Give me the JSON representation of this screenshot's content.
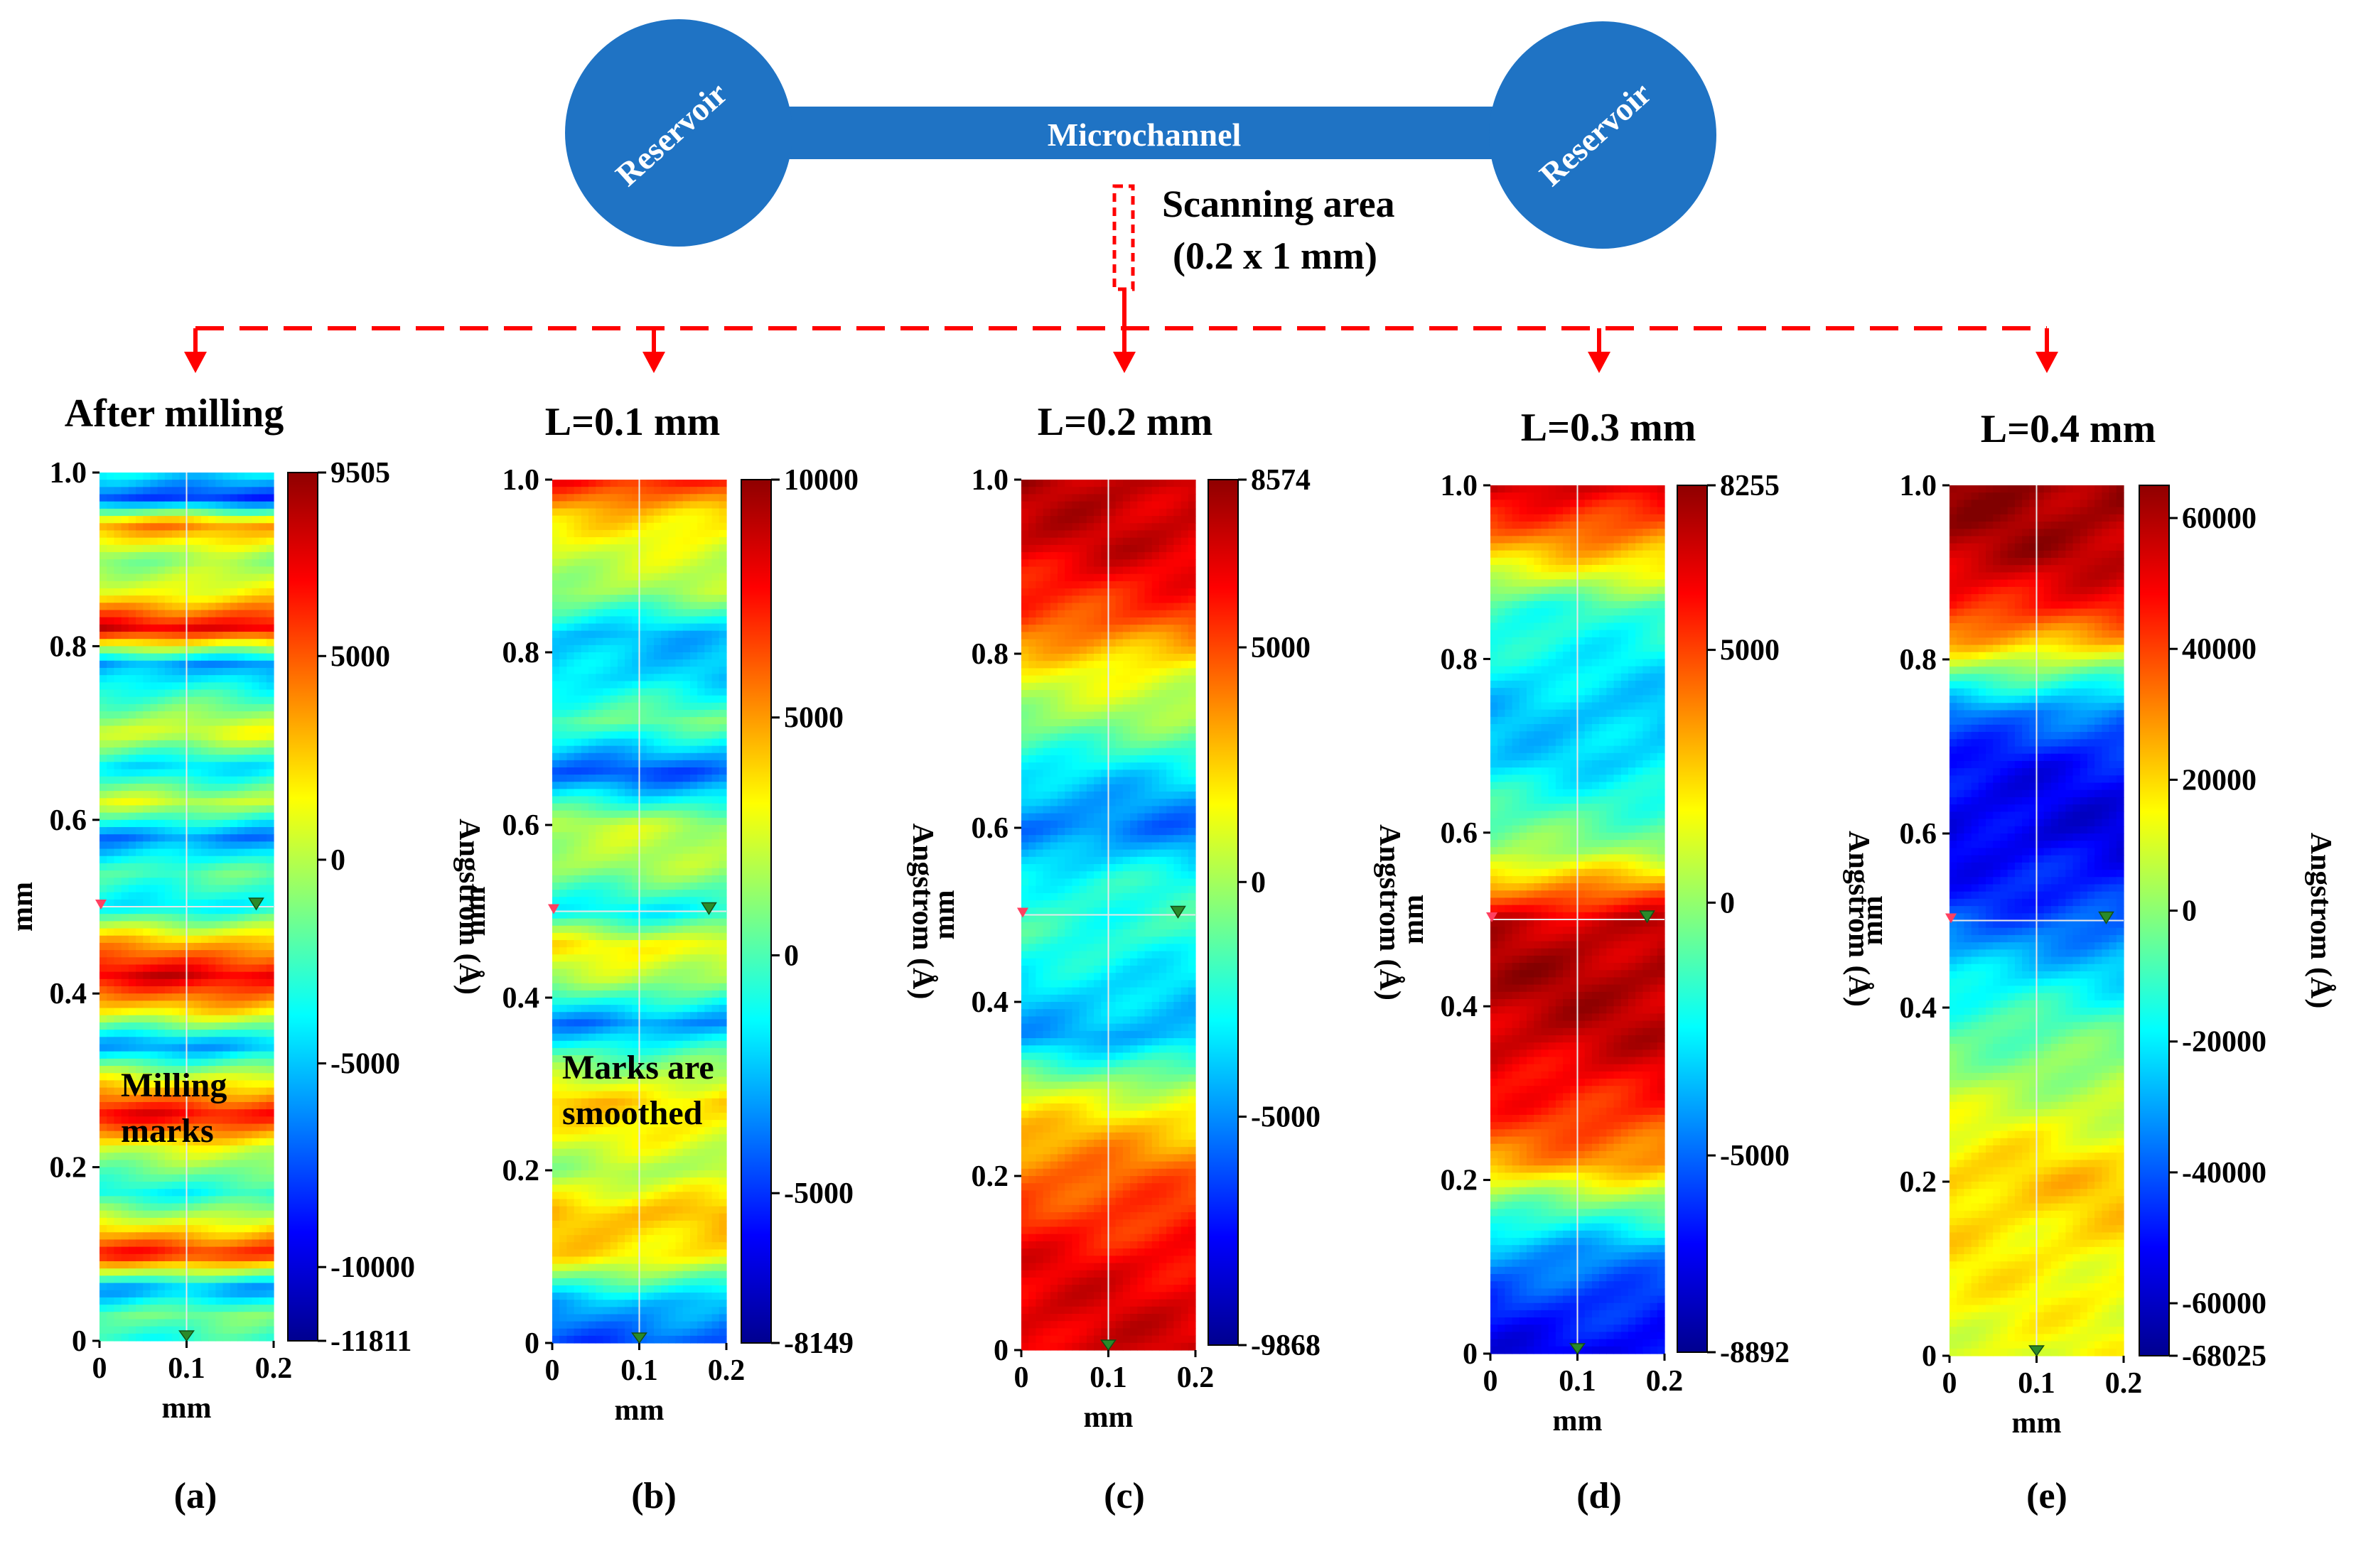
{
  "schematic": {
    "reservoir_left_label": "Reservoir",
    "reservoir_right_label": "Reservoir",
    "channel_label": "Microchannel",
    "scan_label_line1": "Scanning area",
    "scan_label_line2": "(0.2  x 1 mm)",
    "channel_color": "#1f73c4",
    "arrow_color": "#ff0000"
  },
  "chart_data": [
    {
      "type": "heatmap",
      "panel": "(a)",
      "title": "After milling",
      "xlabel": "mm",
      "ylabel": "mm",
      "colorbar_label": "Angstrom (Å)",
      "x_ticks": [
        "0",
        "0.1",
        "0.2"
      ],
      "y_ticks": [
        "0",
        "0.2",
        "0.4",
        "0.6",
        "0.8",
        "1.0"
      ],
      "xlim": [
        0,
        0.2
      ],
      "ylim": [
        0,
        1.0
      ],
      "zlim": [
        -11811,
        9505
      ],
      "colorbar_ticks": [
        {
          "value": 9505,
          "label": "9505"
        },
        {
          "value": 5000,
          "label": "5000"
        },
        {
          "value": 0,
          "label": "0"
        },
        {
          "value": -5000,
          "label": "-5000"
        },
        {
          "value": -10000,
          "label": "-10000"
        },
        {
          "value": -11811,
          "label": "-11811"
        }
      ],
      "annotation": [
        "Milling",
        "marks"
      ],
      "height_profile": [
        {
          "y": 0.0,
          "z": -3000
        },
        {
          "y": 0.03,
          "z": -1500
        },
        {
          "y": 0.06,
          "z": -6000
        },
        {
          "y": 0.1,
          "z": 6500
        },
        {
          "y": 0.13,
          "z": 2000
        },
        {
          "y": 0.17,
          "z": -3500
        },
        {
          "y": 0.22,
          "z": 500
        },
        {
          "y": 0.26,
          "z": 7000
        },
        {
          "y": 0.3,
          "z": 1500
        },
        {
          "y": 0.34,
          "z": -6000
        },
        {
          "y": 0.38,
          "z": 2000
        },
        {
          "y": 0.42,
          "z": 7500
        },
        {
          "y": 0.46,
          "z": 3000
        },
        {
          "y": 0.5,
          "z": -4000
        },
        {
          "y": 0.54,
          "z": -2000
        },
        {
          "y": 0.58,
          "z": -6500
        },
        {
          "y": 0.62,
          "z": 500
        },
        {
          "y": 0.66,
          "z": -4500
        },
        {
          "y": 0.7,
          "z": 1000
        },
        {
          "y": 0.74,
          "z": -2500
        },
        {
          "y": 0.78,
          "z": -6000
        },
        {
          "y": 0.82,
          "z": 7500
        },
        {
          "y": 0.86,
          "z": 1500
        },
        {
          "y": 0.9,
          "z": -1000
        },
        {
          "y": 0.94,
          "z": 4000
        },
        {
          "y": 0.97,
          "z": -8000
        },
        {
          "y": 1.0,
          "z": -4000
        }
      ]
    },
    {
      "type": "heatmap",
      "panel": "(b)",
      "title": "L=0.1 mm",
      "xlabel": "mm",
      "ylabel": "mm",
      "colorbar_label": "Angstrom (Å)",
      "x_ticks": [
        "0",
        "0.1",
        "0.2"
      ],
      "y_ticks": [
        "0",
        "0.2",
        "0.4",
        "0.6",
        "0.8",
        "1.0"
      ],
      "xlim": [
        0,
        0.2
      ],
      "ylim": [
        0,
        1.0
      ],
      "zlim": [
        -8149,
        10000
      ],
      "colorbar_ticks": [
        {
          "value": 10000,
          "label": "10000"
        },
        {
          "value": 5000,
          "label": "5000"
        },
        {
          "value": 0,
          "label": "0"
        },
        {
          "value": -5000,
          "label": "-5000"
        },
        {
          "value": -8149,
          "label": "-8149"
        }
      ],
      "annotation": [
        "Marks are",
        "smoothed"
      ],
      "height_profile": [
        {
          "y": 0.0,
          "z": -4500
        },
        {
          "y": 0.05,
          "z": -2500
        },
        {
          "y": 0.1,
          "z": 3500
        },
        {
          "y": 0.15,
          "z": 4500
        },
        {
          "y": 0.2,
          "z": 1500
        },
        {
          "y": 0.24,
          "z": 3000
        },
        {
          "y": 0.28,
          "z": 4000
        },
        {
          "y": 0.33,
          "z": 500
        },
        {
          "y": 0.37,
          "z": -3500
        },
        {
          "y": 0.42,
          "z": 1500
        },
        {
          "y": 0.46,
          "z": 3500
        },
        {
          "y": 0.5,
          "z": -1500
        },
        {
          "y": 0.55,
          "z": 1500
        },
        {
          "y": 0.6,
          "z": 2000
        },
        {
          "y": 0.66,
          "z": -4500
        },
        {
          "y": 0.72,
          "z": 500
        },
        {
          "y": 0.77,
          "z": -2000
        },
        {
          "y": 0.82,
          "z": -2500
        },
        {
          "y": 0.87,
          "z": 1500
        },
        {
          "y": 0.92,
          "z": 2500
        },
        {
          "y": 0.96,
          "z": 4000
        },
        {
          "y": 1.0,
          "z": 7500
        }
      ]
    },
    {
      "type": "heatmap",
      "panel": "(c)",
      "title": "L=0.2 mm",
      "xlabel": "mm",
      "ylabel": "mm",
      "colorbar_label": "Angstrom (Å)",
      "x_ticks": [
        "0",
        "0.1",
        "0.2"
      ],
      "y_ticks": [
        "0",
        "0.2",
        "0.4",
        "0.6",
        "0.8",
        "1.0"
      ],
      "xlim": [
        0,
        0.2
      ],
      "ylim": [
        0,
        1.0
      ],
      "zlim": [
        -9868,
        8574
      ],
      "colorbar_ticks": [
        {
          "value": 8574,
          "label": "8574"
        },
        {
          "value": 5000,
          "label": "5000"
        },
        {
          "value": 0,
          "label": "0"
        },
        {
          "value": -5000,
          "label": "-5000"
        },
        {
          "value": -9868,
          "label": "-9868"
        }
      ],
      "annotation": [],
      "height_profile": [
        {
          "y": 0.0,
          "z": 7000
        },
        {
          "y": 0.1,
          "z": 6500
        },
        {
          "y": 0.2,
          "z": 4500
        },
        {
          "y": 0.26,
          "z": 2500
        },
        {
          "y": 0.3,
          "z": 500
        },
        {
          "y": 0.36,
          "z": -4500
        },
        {
          "y": 0.42,
          "z": -3500
        },
        {
          "y": 0.48,
          "z": -2000
        },
        {
          "y": 0.54,
          "z": -2500
        },
        {
          "y": 0.6,
          "z": -5500
        },
        {
          "y": 0.66,
          "z": -3500
        },
        {
          "y": 0.72,
          "z": -500
        },
        {
          "y": 0.78,
          "z": 1500
        },
        {
          "y": 0.84,
          "z": 5000
        },
        {
          "y": 0.92,
          "z": 7000
        },
        {
          "y": 1.0,
          "z": 7500
        }
      ]
    },
    {
      "type": "heatmap",
      "panel": "(d)",
      "title": "L=0.3 mm",
      "xlabel": "mm",
      "ylabel": "mm",
      "colorbar_label": "Angstrom (Å)",
      "x_ticks": [
        "0",
        "0.1",
        "0.2"
      ],
      "y_ticks": [
        "0",
        "0.2",
        "0.4",
        "0.6",
        "0.8",
        "1.0"
      ],
      "xlim": [
        0,
        0.2
      ],
      "ylim": [
        0,
        1.0
      ],
      "zlim": [
        -8892,
        8255
      ],
      "colorbar_ticks": [
        {
          "value": 8255,
          "label": "8255"
        },
        {
          "value": 5000,
          "label": "5000"
        },
        {
          "value": 0,
          "label": "0"
        },
        {
          "value": -5000,
          "label": "-5000"
        },
        {
          "value": -8892,
          "label": "-8892"
        }
      ],
      "annotation": [],
      "height_profile": [
        {
          "y": 0.0,
          "z": -7000
        },
        {
          "y": 0.06,
          "z": -6000
        },
        {
          "y": 0.12,
          "z": -4000
        },
        {
          "y": 0.18,
          "z": 0
        },
        {
          "y": 0.22,
          "z": 3500
        },
        {
          "y": 0.28,
          "z": 5500
        },
        {
          "y": 0.36,
          "z": 7000
        },
        {
          "y": 0.44,
          "z": 7500
        },
        {
          "y": 0.5,
          "z": 7000
        },
        {
          "y": 0.54,
          "z": 3500
        },
        {
          "y": 0.58,
          "z": 0
        },
        {
          "y": 0.63,
          "z": -1500
        },
        {
          "y": 0.68,
          "z": -3000
        },
        {
          "y": 0.74,
          "z": -3500
        },
        {
          "y": 0.8,
          "z": -2500
        },
        {
          "y": 0.86,
          "z": -1500
        },
        {
          "y": 0.9,
          "z": 1500
        },
        {
          "y": 0.95,
          "z": 4500
        },
        {
          "y": 1.0,
          "z": 7000
        }
      ]
    },
    {
      "type": "heatmap",
      "panel": "(e)",
      "title": "L=0.4 mm",
      "xlabel": "mm",
      "ylabel": "mm",
      "colorbar_label": "Angstrom (Å)",
      "x_ticks": [
        "0",
        "0.1",
        "0.2"
      ],
      "y_ticks": [
        "0",
        "0.2",
        "0.4",
        "0.6",
        "0.8",
        "1.0"
      ],
      "xlim": [
        0,
        0.2
      ],
      "ylim": [
        0,
        1.0
      ],
      "zlim": [
        -68025,
        65000
      ],
      "colorbar_ticks": [
        {
          "value": 60000,
          "label": "60000"
        },
        {
          "value": 40000,
          "label": "40000"
        },
        {
          "value": 20000,
          "label": "20000"
        },
        {
          "value": 0,
          "label": "0"
        },
        {
          "value": -20000,
          "label": "-20000"
        },
        {
          "value": -40000,
          "label": "-40000"
        },
        {
          "value": -60000,
          "label": "-60000"
        },
        {
          "value": -68025,
          "label": "-68025"
        }
      ],
      "annotation": [],
      "height_profile": [
        {
          "y": 0.0,
          "z": 12000
        },
        {
          "y": 0.1,
          "z": 16000
        },
        {
          "y": 0.2,
          "z": 22000
        },
        {
          "y": 0.3,
          "z": 6000
        },
        {
          "y": 0.38,
          "z": -8000
        },
        {
          "y": 0.45,
          "z": -25000
        },
        {
          "y": 0.52,
          "z": -45000
        },
        {
          "y": 0.6,
          "z": -55000
        },
        {
          "y": 0.68,
          "z": -50000
        },
        {
          "y": 0.74,
          "z": -35000
        },
        {
          "y": 0.78,
          "z": -8000
        },
        {
          "y": 0.82,
          "z": 25000
        },
        {
          "y": 0.86,
          "z": 45000
        },
        {
          "y": 0.92,
          "z": 58000
        },
        {
          "y": 1.0,
          "z": 62000
        }
      ]
    }
  ]
}
